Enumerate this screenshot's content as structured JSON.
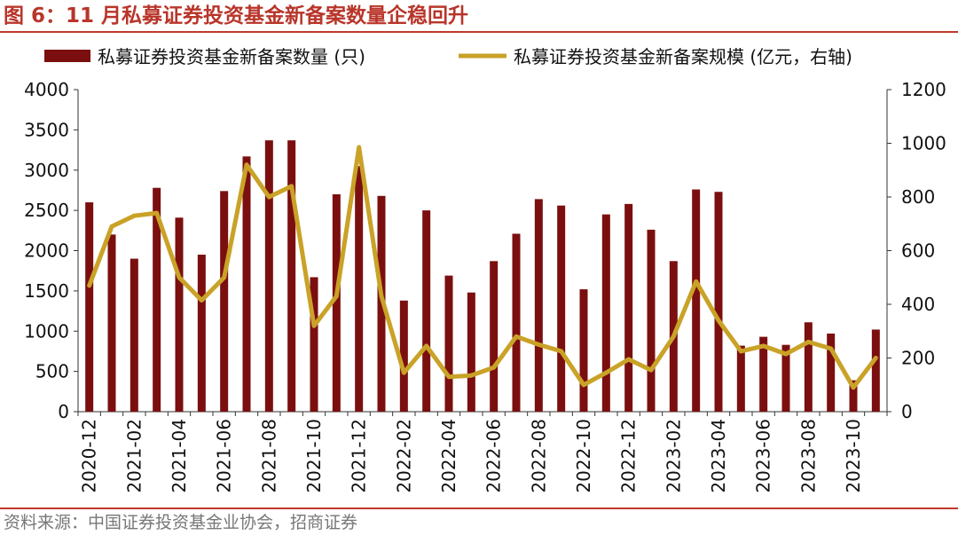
{
  "title": "图 6：11 月私募证券投资基金新备案数量企稳回升",
  "source": "资料来源：中国证券投资基金业协会，招商证券",
  "colors": {
    "bar": "#7b0f0f",
    "line": "#c9a227",
    "accent": "#c0392b"
  },
  "chart_data": {
    "type": "bar",
    "title": "",
    "xlabel": "",
    "ylabel": "",
    "y2label": "",
    "categories": [
      "2020-12",
      "2021-01",
      "2021-02",
      "2021-03",
      "2021-04",
      "2021-05",
      "2021-06",
      "2021-07",
      "2021-08",
      "2021-09",
      "2021-10",
      "2021-11",
      "2021-12",
      "2022-01",
      "2022-02",
      "2022-03",
      "2022-04",
      "2022-05",
      "2022-06",
      "2022-07",
      "2022-08",
      "2022-09",
      "2022-10",
      "2022-11",
      "2022-12",
      "2023-01",
      "2023-02",
      "2023-03",
      "2023-04",
      "2023-05",
      "2023-06",
      "2023-07",
      "2023-08",
      "2023-09",
      "2023-10",
      "2023-11"
    ],
    "tick_labels": [
      "2020-12",
      "2021-02",
      "2021-04",
      "2021-06",
      "2021-08",
      "2021-10",
      "2021-12",
      "2022-02",
      "2022-04",
      "2022-06",
      "2022-08",
      "2022-10",
      "2022-12",
      "2023-02",
      "2023-04",
      "2023-06",
      "2023-08",
      "2023-10"
    ],
    "ylim": [
      0,
      4000
    ],
    "y_ticks": [
      0,
      500,
      1000,
      1500,
      2000,
      2500,
      3000,
      3500,
      4000
    ],
    "y2lim": [
      0,
      1200
    ],
    "y2_ticks": [
      0,
      200,
      400,
      600,
      800,
      1000,
      1200
    ],
    "legend_position": "top",
    "grid": false,
    "series": [
      {
        "name": "私募证券投资基金新备案数量 (只)",
        "type": "bar",
        "axis": "left",
        "values": [
          2600,
          2200,
          1900,
          2780,
          2410,
          1950,
          2740,
          3170,
          3370,
          3370,
          1670,
          2700,
          3050,
          2680,
          1380,
          2500,
          1690,
          1480,
          1870,
          2210,
          2640,
          2560,
          1520,
          2450,
          2580,
          2260,
          1870,
          2760,
          2730,
          820,
          930,
          830,
          1110,
          970,
          390,
          1020
        ]
      },
      {
        "name": "私募证券投资基金新备案规模 (亿元，右轴)",
        "type": "line",
        "axis": "right",
        "values": [
          470,
          690,
          730,
          740,
          500,
          415,
          500,
          920,
          800,
          840,
          320,
          430,
          985,
          430,
          145,
          245,
          130,
          135,
          165,
          280,
          250,
          225,
          100,
          145,
          195,
          155,
          280,
          485,
          340,
          225,
          245,
          215,
          260,
          235,
          90,
          200
        ]
      }
    ]
  }
}
